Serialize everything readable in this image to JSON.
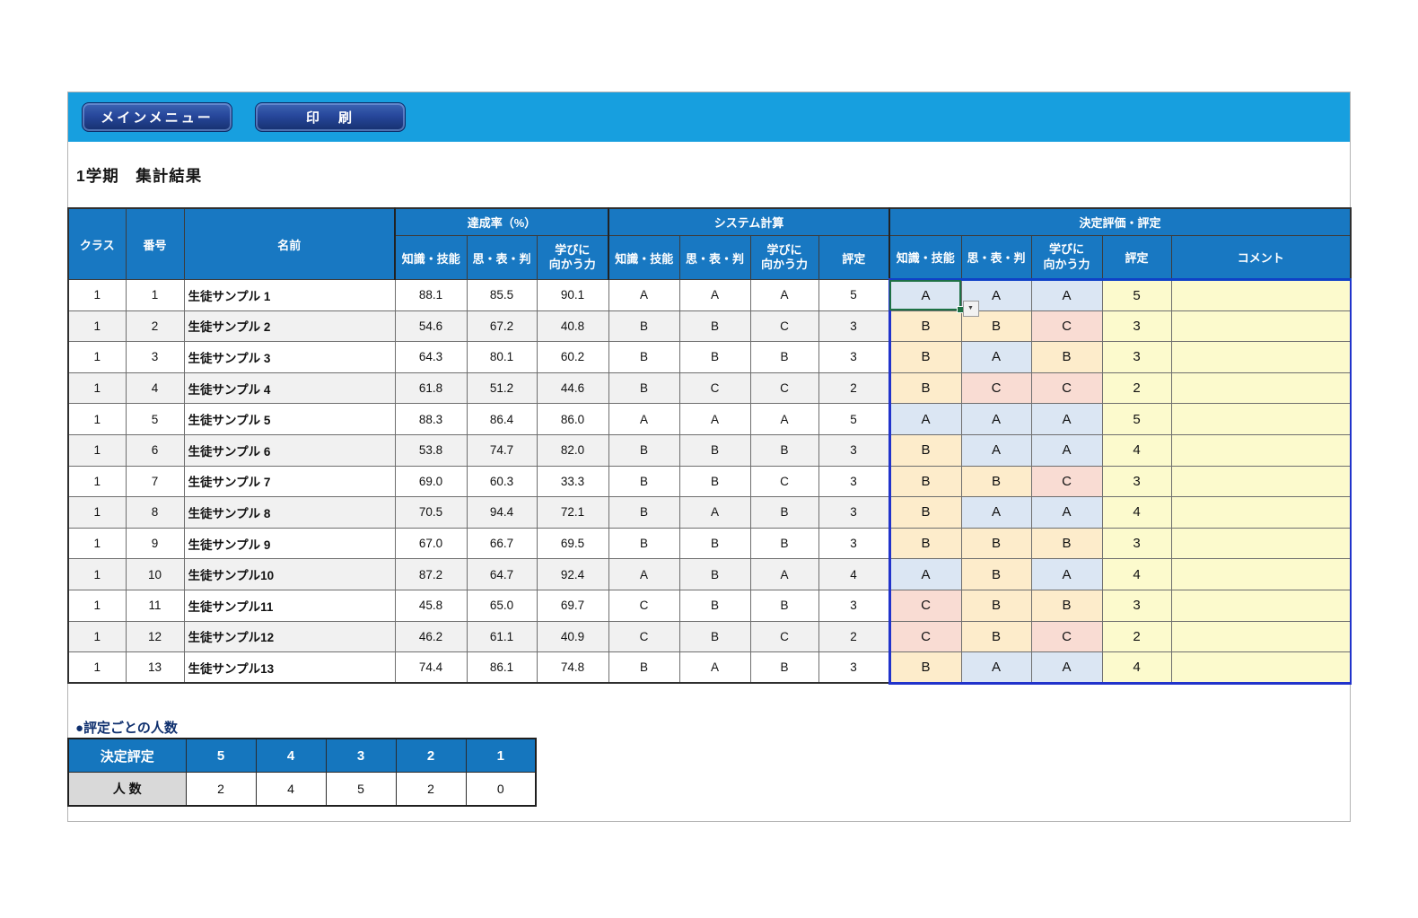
{
  "toolbar": {
    "main_menu_label": "メインメニュー",
    "print_label": "印　刷",
    "bar_color": "#179fdf",
    "button_color": "#27479b"
  },
  "page_title": "1学期　集計結果",
  "table": {
    "groups": {
      "achievement": "達成率（%）",
      "system": "システム計算",
      "decision": "決定評価・評定"
    },
    "columns": {
      "class": "クラス",
      "number": "番号",
      "name": "名前",
      "knowledge": "知識・技能",
      "thinking": "思・表・判",
      "attitude": "学びに\n向かう力",
      "rating": "評定",
      "comment": "コメント"
    },
    "cell_colors": {
      "A": "#dbe6f3",
      "B": "#fdeccb",
      "C": "#f9dcd3",
      "rating_and_comment": "#fcfacd"
    },
    "selected_cell": {
      "row": 1,
      "column": "decision-knowledge"
    },
    "rows": [
      {
        "class": "1",
        "number": "1",
        "name": "生徒サンプル 1",
        "rates": [
          "88.1",
          "85.5",
          "90.1"
        ],
        "system": [
          "A",
          "A",
          "A",
          "5"
        ],
        "decision": [
          "A",
          "A",
          "A",
          "5"
        ],
        "comment": ""
      },
      {
        "class": "1",
        "number": "2",
        "name": "生徒サンプル 2",
        "rates": [
          "54.6",
          "67.2",
          "40.8"
        ],
        "system": [
          "B",
          "B",
          "C",
          "3"
        ],
        "decision": [
          "B",
          "B",
          "C",
          "3"
        ],
        "comment": ""
      },
      {
        "class": "1",
        "number": "3",
        "name": "生徒サンプル 3",
        "rates": [
          "64.3",
          "80.1",
          "60.2"
        ],
        "system": [
          "B",
          "B",
          "B",
          "3"
        ],
        "decision": [
          "B",
          "A",
          "B",
          "3"
        ],
        "comment": ""
      },
      {
        "class": "1",
        "number": "4",
        "name": "生徒サンプル 4",
        "rates": [
          "61.8",
          "51.2",
          "44.6"
        ],
        "system": [
          "B",
          "C",
          "C",
          "2"
        ],
        "decision": [
          "B",
          "C",
          "C",
          "2"
        ],
        "comment": ""
      },
      {
        "class": "1",
        "number": "5",
        "name": "生徒サンプル 5",
        "rates": [
          "88.3",
          "86.4",
          "86.0"
        ],
        "system": [
          "A",
          "A",
          "A",
          "5"
        ],
        "decision": [
          "A",
          "A",
          "A",
          "5"
        ],
        "comment": ""
      },
      {
        "class": "1",
        "number": "6",
        "name": "生徒サンプル 6",
        "rates": [
          "53.8",
          "74.7",
          "82.0"
        ],
        "system": [
          "B",
          "B",
          "B",
          "3"
        ],
        "decision": [
          "B",
          "A",
          "A",
          "4"
        ],
        "comment": ""
      },
      {
        "class": "1",
        "number": "7",
        "name": "生徒サンプル 7",
        "rates": [
          "69.0",
          "60.3",
          "33.3"
        ],
        "system": [
          "B",
          "B",
          "C",
          "3"
        ],
        "decision": [
          "B",
          "B",
          "C",
          "3"
        ],
        "comment": ""
      },
      {
        "class": "1",
        "number": "8",
        "name": "生徒サンプル 8",
        "rates": [
          "70.5",
          "94.4",
          "72.1"
        ],
        "system": [
          "B",
          "A",
          "B",
          "3"
        ],
        "decision": [
          "B",
          "A",
          "A",
          "4"
        ],
        "comment": ""
      },
      {
        "class": "1",
        "number": "9",
        "name": "生徒サンプル 9",
        "rates": [
          "67.0",
          "66.7",
          "69.5"
        ],
        "system": [
          "B",
          "B",
          "B",
          "3"
        ],
        "decision": [
          "B",
          "B",
          "B",
          "3"
        ],
        "comment": ""
      },
      {
        "class": "1",
        "number": "10",
        "name": "生徒サンプル10",
        "rates": [
          "87.2",
          "64.7",
          "92.4"
        ],
        "system": [
          "A",
          "B",
          "A",
          "4"
        ],
        "decision": [
          "A",
          "B",
          "A",
          "4"
        ],
        "comment": ""
      },
      {
        "class": "1",
        "number": "11",
        "name": "生徒サンプル11",
        "rates": [
          "45.8",
          "65.0",
          "69.7"
        ],
        "system": [
          "C",
          "B",
          "B",
          "3"
        ],
        "decision": [
          "C",
          "B",
          "B",
          "3"
        ],
        "comment": ""
      },
      {
        "class": "1",
        "number": "12",
        "name": "生徒サンプル12",
        "rates": [
          "46.2",
          "61.1",
          "40.9"
        ],
        "system": [
          "C",
          "B",
          "C",
          "2"
        ],
        "decision": [
          "C",
          "B",
          "C",
          "2"
        ],
        "comment": ""
      },
      {
        "class": "1",
        "number": "13",
        "name": "生徒サンプル13",
        "rates": [
          "74.4",
          "86.1",
          "74.8"
        ],
        "system": [
          "B",
          "A",
          "B",
          "3"
        ],
        "decision": [
          "B",
          "A",
          "A",
          "4"
        ],
        "comment": ""
      }
    ]
  },
  "summary": {
    "label": "●評定ごとの人数",
    "row_header": "決定評定",
    "count_header": "人 数",
    "ratings": [
      "5",
      "4",
      "3",
      "2",
      "1"
    ],
    "counts": [
      "2",
      "4",
      "5",
      "2",
      "0"
    ]
  }
}
